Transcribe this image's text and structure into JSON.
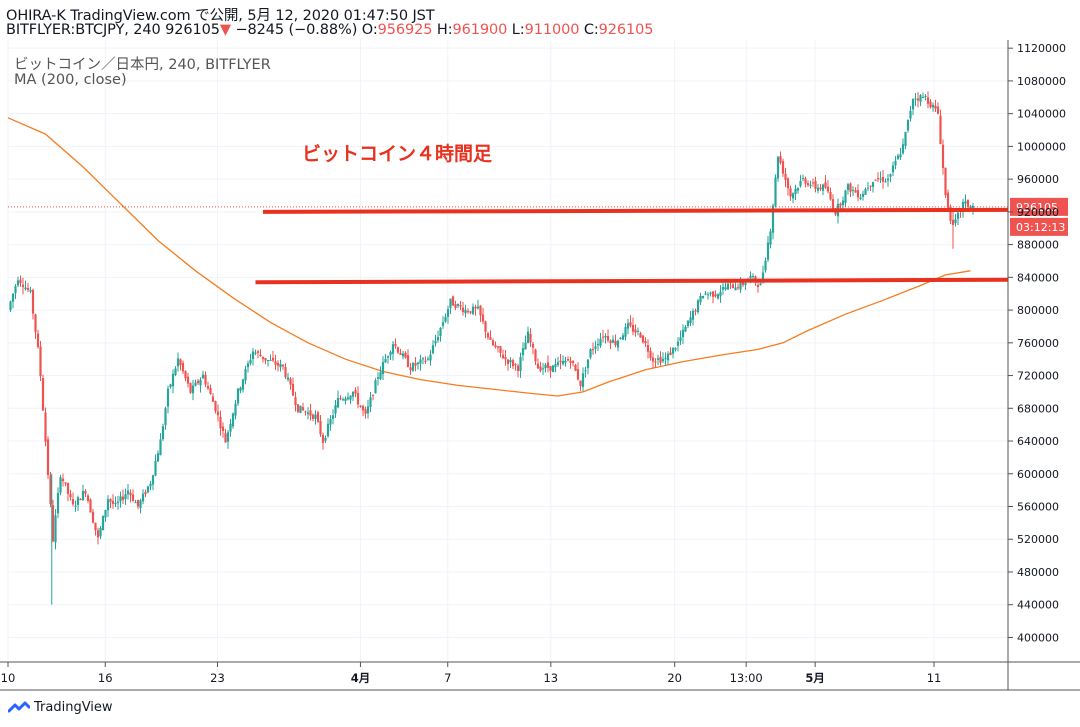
{
  "header": {
    "publish_line": "OHIRA-K TradingView.com で公開, 5月 12, 2020 01:47:50 JST",
    "symbol_price": "BITFLYER:BTCJPY, 240 926105",
    "down_arrow": "▼",
    "change": "−8245 (−0.88%)",
    "o_label": "O:",
    "o_value": "956925",
    "h_label": "H:",
    "h_value": "961900",
    "l_label": "L:",
    "l_value": "911000",
    "c_label": "C:",
    "c_value": "926105"
  },
  "legend": {
    "symbol_line": "ビットコイン／日本円, 240, BITFLYER",
    "ma_line": "MA (200, close)"
  },
  "footer": {
    "brand": "TradingView",
    "logo_icon": "tradingview-logo-icon"
  },
  "colors": {
    "up": "#26a69a",
    "down": "#ef5350",
    "ma": "#f57c20",
    "annotation": "#e8321f",
    "grid": "#f0f3fa",
    "axis_text": "#131722"
  },
  "chart_data": {
    "type": "candlestick",
    "title": "ビットコイン４時間足",
    "ylim": [
      370000,
      1130000
    ],
    "y_ticks": [
      400000,
      440000,
      480000,
      520000,
      560000,
      600000,
      640000,
      680000,
      720000,
      760000,
      800000,
      840000,
      880000,
      920000,
      960000,
      1000000,
      1040000,
      1080000,
      1120000
    ],
    "x_ticks": [
      "10",
      "16",
      "23",
      "4月",
      "7",
      "13",
      "20",
      "13:00",
      "5月",
      "11"
    ],
    "last_price": "926105",
    "countdown": "03:12:13",
    "price_path": [
      [
        0,
        800000
      ],
      [
        0.8,
        840000
      ],
      [
        1.8,
        820000
      ],
      [
        2.5,
        740000
      ],
      [
        3.6,
        520000
      ],
      [
        4.2,
        600000
      ],
      [
        5.2,
        560000
      ],
      [
        6.2,
        580000
      ],
      [
        7.2,
        520000
      ],
      [
        8.0,
        570000
      ],
      [
        8.6,
        560000
      ],
      [
        9.6,
        580000
      ],
      [
        10.4,
        560000
      ],
      [
        11.4,
        590000
      ],
      [
        12.2,
        640000
      ],
      [
        12.8,
        700000
      ],
      [
        13.6,
        740000
      ],
      [
        14.6,
        700000
      ],
      [
        15.6,
        720000
      ],
      [
        16.6,
        680000
      ],
      [
        17.4,
        640000
      ],
      [
        18.4,
        700000
      ],
      [
        19.6,
        750000
      ],
      [
        20.6,
        740000
      ],
      [
        22.0,
        730000
      ],
      [
        23.2,
        680000
      ],
      [
        24.6,
        670000
      ],
      [
        25.2,
        640000
      ],
      [
        26.4,
        690000
      ],
      [
        27.6,
        700000
      ],
      [
        28.6,
        670000
      ],
      [
        29.6,
        720000
      ],
      [
        30.8,
        760000
      ],
      [
        32.2,
        730000
      ],
      [
        33.6,
        740000
      ],
      [
        34.4,
        770000
      ],
      [
        35.4,
        810000
      ],
      [
        36.6,
        800000
      ],
      [
        37.6,
        800000
      ],
      [
        38.6,
        760000
      ],
      [
        39.8,
        740000
      ],
      [
        40.8,
        730000
      ],
      [
        41.6,
        770000
      ],
      [
        42.4,
        730000
      ],
      [
        43.6,
        730000
      ],
      [
        45.0,
        740000
      ],
      [
        45.8,
        710000
      ],
      [
        46.6,
        750000
      ],
      [
        47.6,
        770000
      ],
      [
        48.6,
        760000
      ],
      [
        49.6,
        780000
      ],
      [
        50.6,
        770000
      ],
      [
        51.6,
        740000
      ],
      [
        52.6,
        740000
      ],
      [
        53.6,
        760000
      ],
      [
        54.6,
        790000
      ],
      [
        55.6,
        820000
      ],
      [
        56.6,
        820000
      ],
      [
        57.6,
        830000
      ],
      [
        58.6,
        830000
      ],
      [
        59.4,
        840000
      ],
      [
        60.2,
        830000
      ],
      [
        61.0,
        900000
      ],
      [
        61.6,
        990000
      ],
      [
        62.6,
        940000
      ],
      [
        63.6,
        960000
      ],
      [
        64.6,
        950000
      ],
      [
        65.4,
        950000
      ],
      [
        66.2,
        920000
      ],
      [
        67.2,
        950000
      ],
      [
        68.2,
        940000
      ],
      [
        69.2,
        960000
      ],
      [
        70.4,
        960000
      ],
      [
        71.6,
        1000000
      ],
      [
        72.4,
        1060000
      ],
      [
        73.4,
        1060000
      ],
      [
        74.4,
        1040000
      ],
      [
        75.0,
        940000
      ],
      [
        75.6,
        900000
      ],
      [
        76.4,
        930000
      ],
      [
        77.2,
        926105
      ]
    ],
    "ma_path": [
      [
        0,
        1035000
      ],
      [
        3,
        1015000
      ],
      [
        6,
        975000
      ],
      [
        9,
        930000
      ],
      [
        12,
        885000
      ],
      [
        15,
        848000
      ],
      [
        18,
        815000
      ],
      [
        21,
        785000
      ],
      [
        24,
        760000
      ],
      [
        27,
        740000
      ],
      [
        30,
        725000
      ],
      [
        33,
        715000
      ],
      [
        36,
        708000
      ],
      [
        39,
        703000
      ],
      [
        42,
        698000
      ],
      [
        44,
        695000
      ],
      [
        46,
        700000
      ],
      [
        48,
        712000
      ],
      [
        51,
        727000
      ],
      [
        54,
        737000
      ],
      [
        57,
        745000
      ],
      [
        60,
        752000
      ],
      [
        62,
        760000
      ],
      [
        64,
        775000
      ],
      [
        67,
        795000
      ],
      [
        70,
        812000
      ],
      [
        73,
        830000
      ],
      [
        75,
        843000
      ],
      [
        77,
        848000
      ]
    ],
    "annotations": [
      {
        "type": "hline",
        "y_start": 920000,
        "y_end": 922500,
        "color": "red"
      },
      {
        "type": "hline",
        "y_start": 834000,
        "y_end": 837000,
        "color": "red"
      }
    ]
  }
}
